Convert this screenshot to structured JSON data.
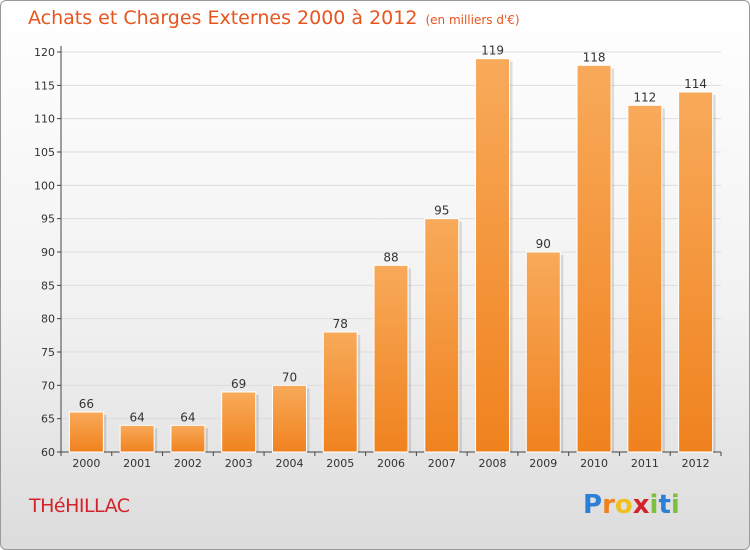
{
  "chart_data": {
    "type": "bar",
    "title": "Achats et Charges Externes 2000 à 2012",
    "subtitle": "(en milliers d'€)",
    "categories": [
      "2000",
      "2001",
      "2002",
      "2003",
      "2004",
      "2005",
      "2006",
      "2007",
      "2008",
      "2009",
      "2010",
      "2011",
      "2012"
    ],
    "values": [
      66,
      64,
      64,
      69,
      70,
      78,
      88,
      95,
      119,
      90,
      118,
      112,
      114
    ],
    "ylim": [
      60,
      120
    ],
    "yticks": [
      60,
      65,
      70,
      75,
      80,
      85,
      90,
      95,
      100,
      105,
      110,
      115,
      120
    ],
    "grid": true,
    "bar_color": "#f0821e",
    "bar_color_light": "#f8aa5a"
  },
  "town": "THéHILLAC",
  "logo": {
    "letters": [
      "P",
      "r",
      "o",
      "x",
      "i",
      "t",
      "i"
    ],
    "colors": [
      "#2b7fd6",
      "#f0821e",
      "#f0c020",
      "#d4222a",
      "#7fbf3f",
      "#2b7fd6",
      "#7fbf3f"
    ]
  }
}
